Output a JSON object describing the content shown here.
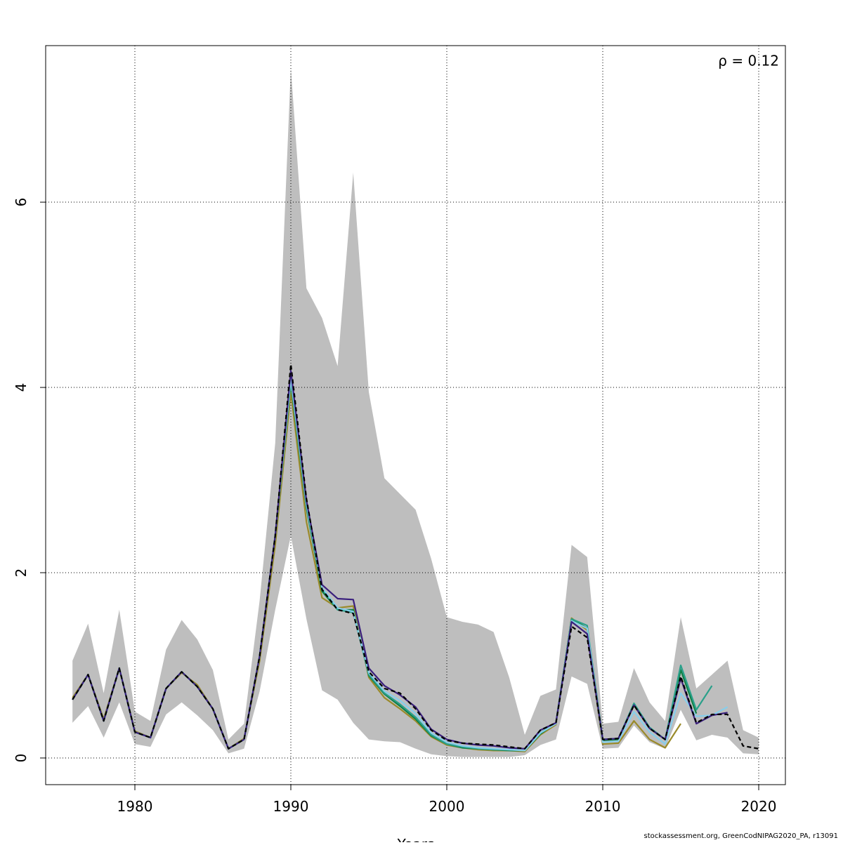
{
  "chart_data": {
    "type": "line",
    "annotation": "ρ = 0.12",
    "x_label": "Years",
    "footer": "stockassessment.org, GreenCodNIPAG2020_PA, r13091",
    "x": [
      1976,
      1977,
      1978,
      1979,
      1980,
      1981,
      1982,
      1983,
      1984,
      1985,
      1986,
      1987,
      1988,
      1989,
      1990,
      1991,
      1992,
      1993,
      1994,
      1995,
      1996,
      1997,
      1998,
      1999,
      2000,
      2001,
      2002,
      2003,
      2004,
      2005,
      2006,
      2007,
      2008,
      2009,
      2010,
      2011,
      2012,
      2013,
      2014,
      2015,
      2016,
      2017,
      2018,
      2019,
      2020
    ],
    "band": {
      "color": "#bebebe",
      "upper": [
        1.05,
        1.45,
        0.7,
        1.6,
        0.5,
        0.4,
        1.17,
        1.49,
        1.28,
        0.95,
        0.2,
        0.37,
        1.7,
        3.4,
        7.45,
        5.07,
        4.75,
        4.23,
        6.32,
        3.95,
        3.02,
        2.85,
        2.68,
        2.15,
        1.52,
        1.47,
        1.44,
        1.36,
        0.87,
        0.25,
        0.67,
        0.74,
        2.3,
        2.17,
        0.37,
        0.39,
        0.97,
        0.6,
        0.4,
        1.52,
        0.75,
        0.9,
        1.05,
        0.3,
        0.22
      ],
      "lower": [
        0.38,
        0.56,
        0.22,
        0.6,
        0.15,
        0.12,
        0.47,
        0.6,
        0.46,
        0.3,
        0.05,
        0.1,
        0.72,
        1.6,
        2.4,
        1.5,
        0.73,
        0.63,
        0.38,
        0.2,
        0.18,
        0.17,
        0.1,
        0.04,
        0.02,
        0.01,
        0.01,
        0.01,
        0.01,
        0.03,
        0.14,
        0.2,
        0.88,
        0.8,
        0.1,
        0.11,
        0.35,
        0.17,
        0.1,
        0.52,
        0.19,
        0.25,
        0.22,
        0.05,
        0.04
      ]
    },
    "series": [
      {
        "color": "#000000",
        "dashed": true,
        "values": [
          0.63,
          0.9,
          0.4,
          0.97,
          0.28,
          0.22,
          0.75,
          0.93,
          0.77,
          0.53,
          0.1,
          0.2,
          1.1,
          2.4,
          4.25,
          2.8,
          1.82,
          1.6,
          1.56,
          0.93,
          0.75,
          0.7,
          0.53,
          0.3,
          0.19,
          0.16,
          0.15,
          0.14,
          0.12,
          0.1,
          0.3,
          0.38,
          1.42,
          1.3,
          0.2,
          0.21,
          0.57,
          0.32,
          0.2,
          0.88,
          0.38,
          0.47,
          0.47,
          0.13,
          0.1
        ]
      },
      {
        "color": "#3a1f7d",
        "values": [
          0.63,
          0.9,
          0.4,
          0.97,
          0.28,
          0.22,
          0.75,
          0.93,
          0.77,
          0.53,
          0.1,
          0.2,
          1.1,
          2.4,
          4.18,
          2.78,
          1.87,
          1.72,
          1.71,
          0.97,
          0.78,
          0.68,
          0.55,
          0.31,
          0.2,
          0.16,
          0.14,
          0.13,
          0.11,
          0.1,
          0.3,
          0.38,
          1.47,
          1.34,
          0.2,
          0.21,
          0.57,
          0.32,
          0.2,
          0.86,
          0.37,
          0.46,
          0.49,
          null,
          null
        ]
      },
      {
        "color": "#87ceeb",
        "values": [
          0.63,
          0.9,
          0.4,
          0.97,
          0.28,
          0.22,
          0.75,
          0.93,
          0.77,
          0.53,
          0.1,
          0.2,
          1.1,
          2.4,
          4.1,
          2.75,
          1.84,
          1.62,
          1.58,
          0.92,
          0.72,
          0.62,
          0.48,
          0.27,
          0.17,
          0.13,
          0.11,
          0.1,
          0.09,
          0.08,
          0.27,
          0.37,
          1.48,
          1.4,
          0.17,
          0.18,
          0.5,
          0.28,
          0.15,
          0.7,
          0.45,
          0.46,
          0.55,
          null,
          null
        ]
      },
      {
        "color": "#2aa08a",
        "values": [
          0.63,
          0.9,
          0.4,
          0.97,
          0.28,
          0.22,
          0.75,
          0.93,
          0.77,
          0.53,
          0.1,
          0.2,
          1.1,
          2.4,
          4.08,
          2.72,
          1.83,
          1.6,
          1.57,
          0.9,
          0.7,
          0.58,
          0.44,
          0.25,
          0.15,
          0.12,
          0.1,
          0.09,
          0.09,
          0.08,
          0.27,
          0.38,
          1.5,
          1.43,
          0.2,
          0.21,
          0.59,
          0.33,
          0.2,
          1.0,
          0.52,
          0.78,
          null,
          null,
          null
        ]
      },
      {
        "color": "#0f7f45",
        "values": [
          0.63,
          0.9,
          0.4,
          0.97,
          0.28,
          0.22,
          0.75,
          0.93,
          0.77,
          0.53,
          0.1,
          0.2,
          1.1,
          2.4,
          4.05,
          2.7,
          1.8,
          1.6,
          1.6,
          0.89,
          0.69,
          0.56,
          0.42,
          0.24,
          0.15,
          0.11,
          0.1,
          0.09,
          0.08,
          0.08,
          0.26,
          0.38,
          1.5,
          1.4,
          0.19,
          0.2,
          0.58,
          0.32,
          0.2,
          0.95,
          0.48,
          null,
          null,
          null,
          null
        ]
      },
      {
        "color": "#9a8a2a",
        "values": [
          0.65,
          0.9,
          0.42,
          0.97,
          0.29,
          0.22,
          0.75,
          0.92,
          0.79,
          0.53,
          0.1,
          0.21,
          1.05,
          2.3,
          3.95,
          2.55,
          1.73,
          1.62,
          1.64,
          0.87,
          0.65,
          0.53,
          0.4,
          0.23,
          0.14,
          0.11,
          0.09,
          0.08,
          0.08,
          0.07,
          0.25,
          0.36,
          1.51,
          1.38,
          0.15,
          0.16,
          0.4,
          0.2,
          0.11,
          0.37,
          null,
          null,
          null,
          null,
          null
        ]
      }
    ],
    "xlim": [
      1974.28,
      2021.71
    ],
    "xticks": [
      1980,
      1990,
      2000,
      2010,
      2020
    ],
    "ylim": [
      -0.288,
      7.69
    ],
    "yticks": [
      0,
      2,
      4,
      6
    ],
    "grid": true
  }
}
